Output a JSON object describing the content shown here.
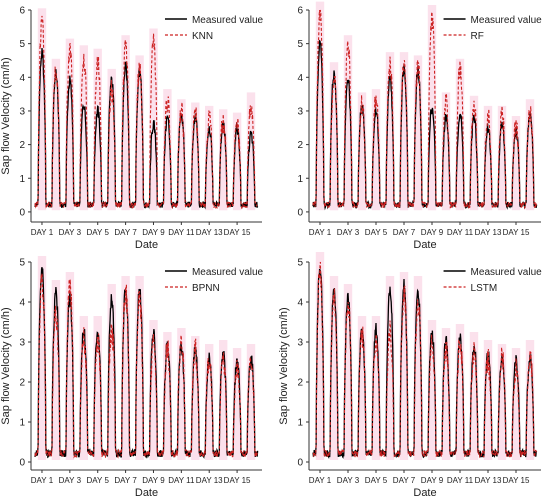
{
  "figure": {
    "colors": {
      "measured": "#000000",
      "predicted": "#cc2222",
      "band": "#f7c8dc"
    }
  },
  "chart_data": [
    {
      "type": "line",
      "panel": "top-left",
      "xlabel": "Date",
      "ylabel": "Sap flow Velocity (cm/h)",
      "xticks": [
        "DAY 1",
        "DAY 3",
        "DAY 5",
        "DAY 7",
        "DAY 9",
        "DAY 11",
        "DAY 13",
        "DAY 15"
      ],
      "yticks": [
        0,
        1,
        2,
        3,
        4,
        5,
        6
      ],
      "ylim": [
        -0.3,
        6
      ],
      "legend_position": "top-right",
      "series": [
        {
          "name": "Measured value",
          "style": "solid",
          "color": "#000000",
          "daily_peaks": [
            4.7,
            4.1,
            3.9,
            3.2,
            3.0,
            3.9,
            4.3,
            4.2,
            2.6,
            2.8,
            2.9,
            2.8,
            2.5,
            2.6,
            2.5,
            2.3
          ]
        },
        {
          "name": "KNN",
          "style": "dashed",
          "color": "#cc2222",
          "daily_peaks": [
            5.7,
            4.2,
            4.8,
            4.6,
            4.5,
            3.6,
            4.9,
            4.3,
            5.1,
            3.3,
            3.0,
            2.9,
            2.8,
            2.7,
            2.6,
            3.2
          ]
        }
      ]
    },
    {
      "type": "line",
      "panel": "top-right",
      "xlabel": "Date",
      "ylabel": "",
      "xticks": [
        "DAY 1",
        "DAY 3",
        "DAY 5",
        "DAY 7",
        "DAY 9",
        "DAY 11",
        "DAY 13",
        "DAY 15"
      ],
      "yticks": [
        0,
        1,
        2,
        3,
        4,
        5,
        6
      ],
      "ylim": [
        -0.3,
        6
      ],
      "legend_position": "top-right",
      "series": [
        {
          "name": "Measured value",
          "style": "solid",
          "color": "#000000",
          "daily_peaks": [
            5.0,
            4.1,
            3.9,
            3.2,
            3.0,
            3.9,
            4.3,
            4.2,
            3.1,
            2.8,
            2.9,
            2.8,
            2.5,
            2.6,
            2.4,
            2.9
          ]
        },
        {
          "name": "RF",
          "style": "dashed",
          "color": "#cc2222",
          "daily_peaks": [
            5.9,
            4.0,
            4.9,
            3.2,
            3.3,
            4.4,
            4.4,
            4.3,
            5.8,
            3.2,
            4.2,
            3.1,
            2.8,
            2.8,
            2.5,
            3.0
          ]
        }
      ]
    },
    {
      "type": "line",
      "panel": "bottom-left",
      "xlabel": "Date",
      "ylabel": "Sap flow Velocity (cm/h)",
      "xticks": [
        "DAY 1",
        "DAY 3",
        "DAY 5",
        "DAY 7",
        "DAY 9",
        "DAY 11",
        "DAY 13",
        "DAY 15"
      ],
      "yticks": [
        0,
        1,
        2,
        3,
        4,
        5
      ],
      "ylim": [
        -0.2,
        5
      ],
      "legend_position": "top-right",
      "series": [
        {
          "name": "Measured value",
          "style": "solid",
          "color": "#000000",
          "daily_peaks": [
            4.8,
            4.2,
            4.1,
            3.3,
            3.3,
            4.1,
            4.3,
            4.3,
            3.2,
            2.9,
            2.9,
            2.8,
            2.6,
            2.7,
            2.5,
            2.6
          ]
        },
        {
          "name": "BPNN",
          "style": "dashed",
          "color": "#cc2222",
          "daily_peaks": [
            4.5,
            3.7,
            4.4,
            3.1,
            3.0,
            3.3,
            4.3,
            4.1,
            2.9,
            2.8,
            3.0,
            2.8,
            2.6,
            2.6,
            2.3,
            2.5
          ]
        }
      ]
    },
    {
      "type": "line",
      "panel": "bottom-right",
      "xlabel": "Date",
      "ylabel": "Sap flow Velocity (cm/h)",
      "xticks": [
        "DAY 1",
        "DAY 3",
        "DAY 5",
        "DAY 7",
        "DAY 9",
        "DAY 11",
        "DAY 13",
        "DAY 15"
      ],
      "yticks": [
        0,
        1,
        2,
        3,
        4,
        5
      ],
      "ylim": [
        -0.2,
        5
      ],
      "legend_position": "top-right",
      "series": [
        {
          "name": "Measured value",
          "style": "solid",
          "color": "#000000",
          "daily_peaks": [
            4.9,
            4.3,
            4.1,
            3.3,
            3.3,
            4.3,
            4.4,
            4.3,
            3.2,
            3.0,
            3.1,
            2.9,
            2.7,
            2.6,
            2.5,
            2.6
          ]
        },
        {
          "name": "LSTM",
          "style": "dashed",
          "color": "#cc2222",
          "daily_peaks": [
            4.7,
            4.1,
            4.0,
            3.2,
            3.0,
            3.2,
            4.2,
            4.0,
            3.0,
            2.8,
            3.0,
            2.8,
            2.5,
            2.6,
            2.3,
            2.7
          ]
        }
      ]
    }
  ]
}
